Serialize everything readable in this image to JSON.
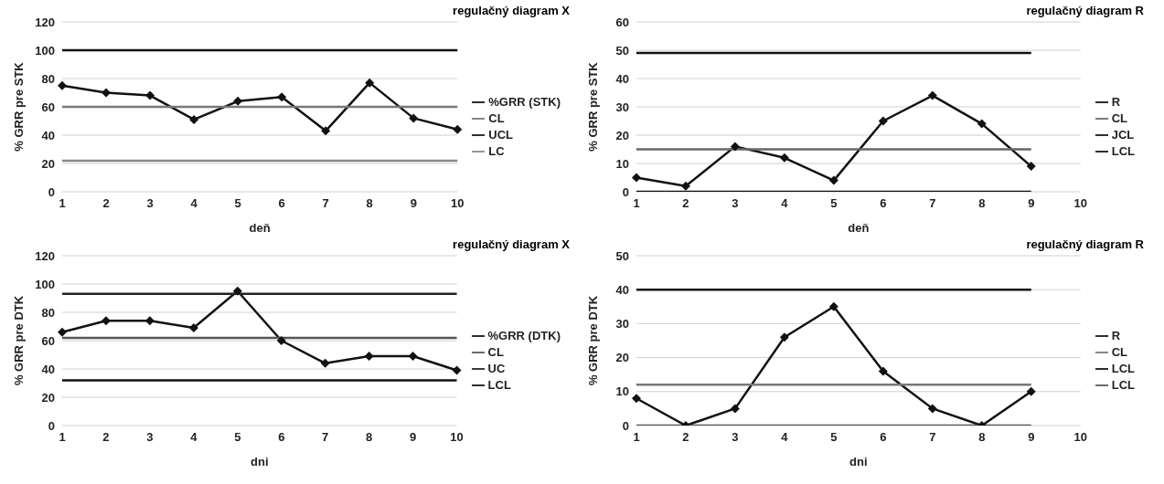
{
  "chart_data": [
    {
      "type": "line",
      "title": "regulačný diagram X",
      "xlabel": "deň",
      "ylabel": "% GRR pre STK",
      "categories": [
        "1",
        "2",
        "3",
        "4",
        "5",
        "6",
        "7",
        "8",
        "9",
        "10"
      ],
      "ylim": [
        0,
        120
      ],
      "yticks": [
        0,
        20,
        40,
        60,
        80,
        100,
        120
      ],
      "grid": "y",
      "legend": "right",
      "series": [
        {
          "name": "%GRR (STK)",
          "color": "#111111",
          "marker": "diamond",
          "values": [
            75,
            70,
            68,
            51,
            64,
            67,
            43,
            77,
            52,
            44
          ]
        },
        {
          "name": "CL",
          "color": "#777777",
          "marker": "none",
          "values": [
            60,
            60,
            60,
            60,
            60,
            60,
            60,
            60,
            60,
            60
          ]
        },
        {
          "name": "UCL",
          "color": "#111111",
          "marker": "none",
          "values": [
            100,
            100,
            100,
            100,
            100,
            100,
            100,
            100,
            100,
            100
          ]
        },
        {
          "name": "LC",
          "color": "#888888",
          "marker": "none",
          "values": [
            22,
            22,
            22,
            22,
            22,
            22,
            22,
            22,
            22,
            22
          ]
        }
      ]
    },
    {
      "type": "line",
      "title": "regulačný diagram R",
      "xlabel": "deň",
      "ylabel": "% GRR pre STK",
      "categories": [
        "1",
        "2",
        "3",
        "4",
        "5",
        "6",
        "7",
        "8",
        "9",
        "10"
      ],
      "ylim": [
        0,
        60
      ],
      "yticks": [
        0,
        10,
        20,
        30,
        40,
        50,
        60
      ],
      "grid": "y",
      "legend": "right",
      "series": [
        {
          "name": "R",
          "color": "#111111",
          "marker": "diamond",
          "values": [
            5,
            2,
            16,
            12,
            4,
            25,
            34,
            24,
            9,
            null
          ]
        },
        {
          "name": "CL",
          "color": "#666666",
          "marker": "none",
          "values": [
            15,
            15,
            15,
            15,
            15,
            15,
            15,
            15,
            15,
            null
          ]
        },
        {
          "name": "JCL",
          "color": "#111111",
          "marker": "none",
          "values": [
            49,
            49,
            49,
            49,
            49,
            49,
            49,
            49,
            49,
            null
          ]
        },
        {
          "name": "LCL",
          "color": "#111111",
          "marker": "none",
          "values": [
            0,
            0,
            0,
            0,
            0,
            0,
            0,
            0,
            0,
            null
          ]
        }
      ]
    },
    {
      "type": "line",
      "title": "regulačný diagram X",
      "xlabel": "dni",
      "ylabel": "% GRR pre DTK",
      "categories": [
        "1",
        "2",
        "3",
        "4",
        "5",
        "6",
        "7",
        "8",
        "9",
        "10"
      ],
      "ylim": [
        0,
        120
      ],
      "yticks": [
        0,
        20,
        40,
        60,
        80,
        100,
        120
      ],
      "grid": "y",
      "legend": "right",
      "series": [
        {
          "name": "%GRR (DTK)",
          "color": "#111111",
          "marker": "diamond",
          "values": [
            66,
            74,
            74,
            69,
            95,
            60,
            44,
            49,
            49,
            39
          ]
        },
        {
          "name": "CL",
          "color": "#555555",
          "marker": "none",
          "values": [
            62,
            62,
            62,
            62,
            62,
            62,
            62,
            62,
            62,
            62
          ]
        },
        {
          "name": "UC",
          "color": "#222222",
          "marker": "none",
          "values": [
            93,
            93,
            93,
            93,
            93,
            93,
            93,
            93,
            93,
            93
          ]
        },
        {
          "name": "LCL",
          "color": "#111111",
          "marker": "none",
          "values": [
            32,
            32,
            32,
            32,
            32,
            32,
            32,
            32,
            32,
            32
          ]
        }
      ]
    },
    {
      "type": "line",
      "title": "regulačný diagram R",
      "xlabel": "dni",
      "ylabel": "% GRR pre DTK",
      "categories": [
        "1",
        "2",
        "3",
        "4",
        "5",
        "6",
        "7",
        "8",
        "9",
        "10"
      ],
      "ylim": [
        0,
        50
      ],
      "yticks": [
        0,
        10,
        20,
        30,
        40,
        50
      ],
      "grid": "y",
      "legend": "right",
      "series": [
        {
          "name": "R",
          "color": "#111111",
          "marker": "diamond",
          "values": [
            8,
            0,
            5,
            26,
            35,
            16,
            5,
            0,
            10,
            null
          ]
        },
        {
          "name": "CL",
          "color": "#777777",
          "marker": "none",
          "values": [
            12,
            12,
            12,
            12,
            12,
            12,
            12,
            12,
            12,
            null
          ]
        },
        {
          "name": "LCL",
          "color": "#111111",
          "marker": "none",
          "values": [
            40,
            40,
            40,
            40,
            40,
            40,
            40,
            40,
            40,
            null
          ]
        },
        {
          "name": "LCL",
          "color": "#555555",
          "marker": "none",
          "values": [
            0,
            0,
            0,
            0,
            0,
            0,
            0,
            0,
            0,
            null
          ]
        }
      ]
    }
  ]
}
